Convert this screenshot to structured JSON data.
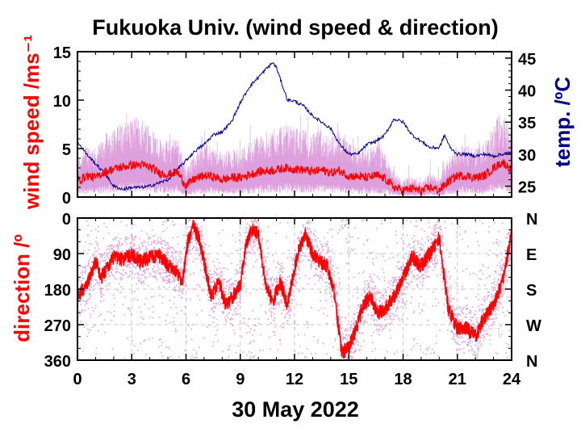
{
  "title": "Fukuoka Univ. (wind speed & direction)",
  "date_label": "30 May 2022",
  "colors": {
    "wind_mean": "#ff0000",
    "wind_raw": "#dda0dd",
    "temperature": "#00008b",
    "axis": "#000000",
    "grid": "#c8c8c8"
  },
  "chart_data": [
    {
      "type": "line",
      "name": "wind speed and temperature",
      "xlim": [
        0,
        24
      ],
      "ylim": [
        0,
        15
      ],
      "y2lim": [
        23.3,
        46
      ],
      "ylabel": "wind speed /ms⁻¹",
      "y2label": "temp. /ºC",
      "x_ticks": [
        "0",
        "3",
        "6",
        "9",
        "12",
        "15",
        "18",
        "21",
        "24"
      ],
      "y_ticks": [
        "0",
        "5",
        "10",
        "15"
      ],
      "y2_ticks": [
        "25",
        "30",
        "35",
        "40",
        "45"
      ],
      "grid": false,
      "series": [
        {
          "role": "wind speed mean",
          "color": "#ff0000",
          "x": [
            0,
            0.5,
            1,
            1.5,
            2,
            2.5,
            3,
            3.5,
            4,
            4.5,
            5,
            5.5,
            6,
            6.5,
            7,
            7.5,
            8,
            8.5,
            9,
            9.5,
            10,
            10.5,
            11,
            11.5,
            12,
            12.5,
            13,
            13.5,
            14,
            14.5,
            15,
            15.5,
            16,
            16.5,
            17,
            17.5,
            18,
            18.5,
            19,
            19.5,
            20,
            20.5,
            21,
            21.5,
            22,
            22.5,
            23,
            23.5,
            24
          ],
          "y": [
            1.6,
            2.2,
            2.0,
            2.6,
            2.9,
            3.1,
            3.3,
            3.3,
            3.1,
            2.5,
            2.3,
            2.6,
            1.2,
            1.9,
            2.2,
            2.1,
            1.8,
            2.0,
            2.0,
            2.3,
            2.6,
            2.7,
            2.8,
            3.0,
            2.9,
            2.8,
            2.6,
            2.8,
            2.5,
            2.7,
            2.2,
            2.1,
            2.0,
            2.2,
            1.9,
            1.0,
            0.7,
            0.9,
            0.6,
            1.0,
            0.7,
            1.6,
            2.2,
            2.2,
            2.0,
            2.2,
            3.0,
            3.6,
            2.8
          ]
        },
        {
          "role": "temperature",
          "axis": "right",
          "color": "#00008b",
          "x": [
            0,
            0.5,
            1,
            1.5,
            2,
            2.5,
            3,
            3.5,
            4,
            4.5,
            5,
            5.5,
            6,
            6.5,
            7,
            7.5,
            8,
            8.5,
            9,
            9.5,
            10,
            10.5,
            10.8,
            11,
            11.3,
            11.6,
            12,
            12.5,
            13,
            13.5,
            14,
            14.5,
            15,
            15.5,
            16,
            16.5,
            17,
            17.5,
            18,
            18.5,
            19,
            19.5,
            20,
            20.3,
            20.6,
            21,
            21.5,
            22,
            22.5,
            23,
            23.5,
            24
          ],
          "y": [
            32,
            30,
            28.5,
            27,
            25,
            24.5,
            24.8,
            24.8,
            25,
            25.5,
            26,
            27.5,
            29,
            30.5,
            31.5,
            33,
            33.5,
            35,
            38,
            40.5,
            42,
            43.5,
            44.3,
            43.5,
            41,
            38.5,
            38.3,
            37.5,
            36,
            35,
            34,
            31.5,
            30,
            30,
            31.5,
            32,
            33,
            35.5,
            35,
            33,
            32,
            31,
            31,
            33,
            31,
            30,
            30,
            29.7,
            30,
            29.7,
            30,
            30.3
          ]
        }
      ]
    },
    {
      "type": "scatter",
      "name": "wind direction",
      "xlim": [
        0,
        24
      ],
      "ylim": [
        360,
        0
      ],
      "ylabel": "direction /º",
      "xlabel": "",
      "x_ticks": [
        "0",
        "3",
        "6",
        "9",
        "12",
        "15",
        "18",
        "21",
        "24"
      ],
      "y_ticks": [
        "0",
        "90",
        "180",
        "270",
        "360"
      ],
      "y2_ticks": [
        "N",
        "E",
        "S",
        "W",
        "N"
      ],
      "grid": true,
      "series": [
        {
          "role": "wind direction mean",
          "color": "#ff0000",
          "x": [
            0,
            0.3,
            0.6,
            1,
            1.3,
            1.6,
            2,
            2.5,
            3,
            3.5,
            4,
            4.5,
            5,
            5.5,
            5.8,
            6.1,
            6.4,
            6.7,
            7,
            7.4,
            7.8,
            8.2,
            8.6,
            9,
            9.3,
            9.6,
            10,
            10.4,
            10.8,
            11.2,
            11.6,
            12,
            12.3,
            12.6,
            13,
            13.4,
            13.8,
            14.2,
            14.6,
            15,
            15.4,
            15.8,
            16.2,
            16.6,
            17,
            17.5,
            18,
            18.5,
            19,
            19.5,
            20,
            20.5,
            21,
            21.5,
            22,
            22.5,
            23,
            23.5,
            24
          ],
          "y": [
            200,
            180,
            160,
            110,
            150,
            130,
            100,
            105,
            95,
            110,
            100,
            95,
            120,
            140,
            160,
            60,
            20,
            50,
            110,
            200,
            160,
            220,
            200,
            170,
            70,
            30,
            40,
            170,
            210,
            160,
            220,
            130,
            70,
            40,
            90,
            110,
            120,
            190,
            340,
            330,
            280,
            220,
            200,
            240,
            230,
            200,
            150,
            100,
            120,
            90,
            50,
            230,
            280,
            280,
            300,
            250,
            220,
            160,
            40
          ]
        }
      ]
    }
  ]
}
